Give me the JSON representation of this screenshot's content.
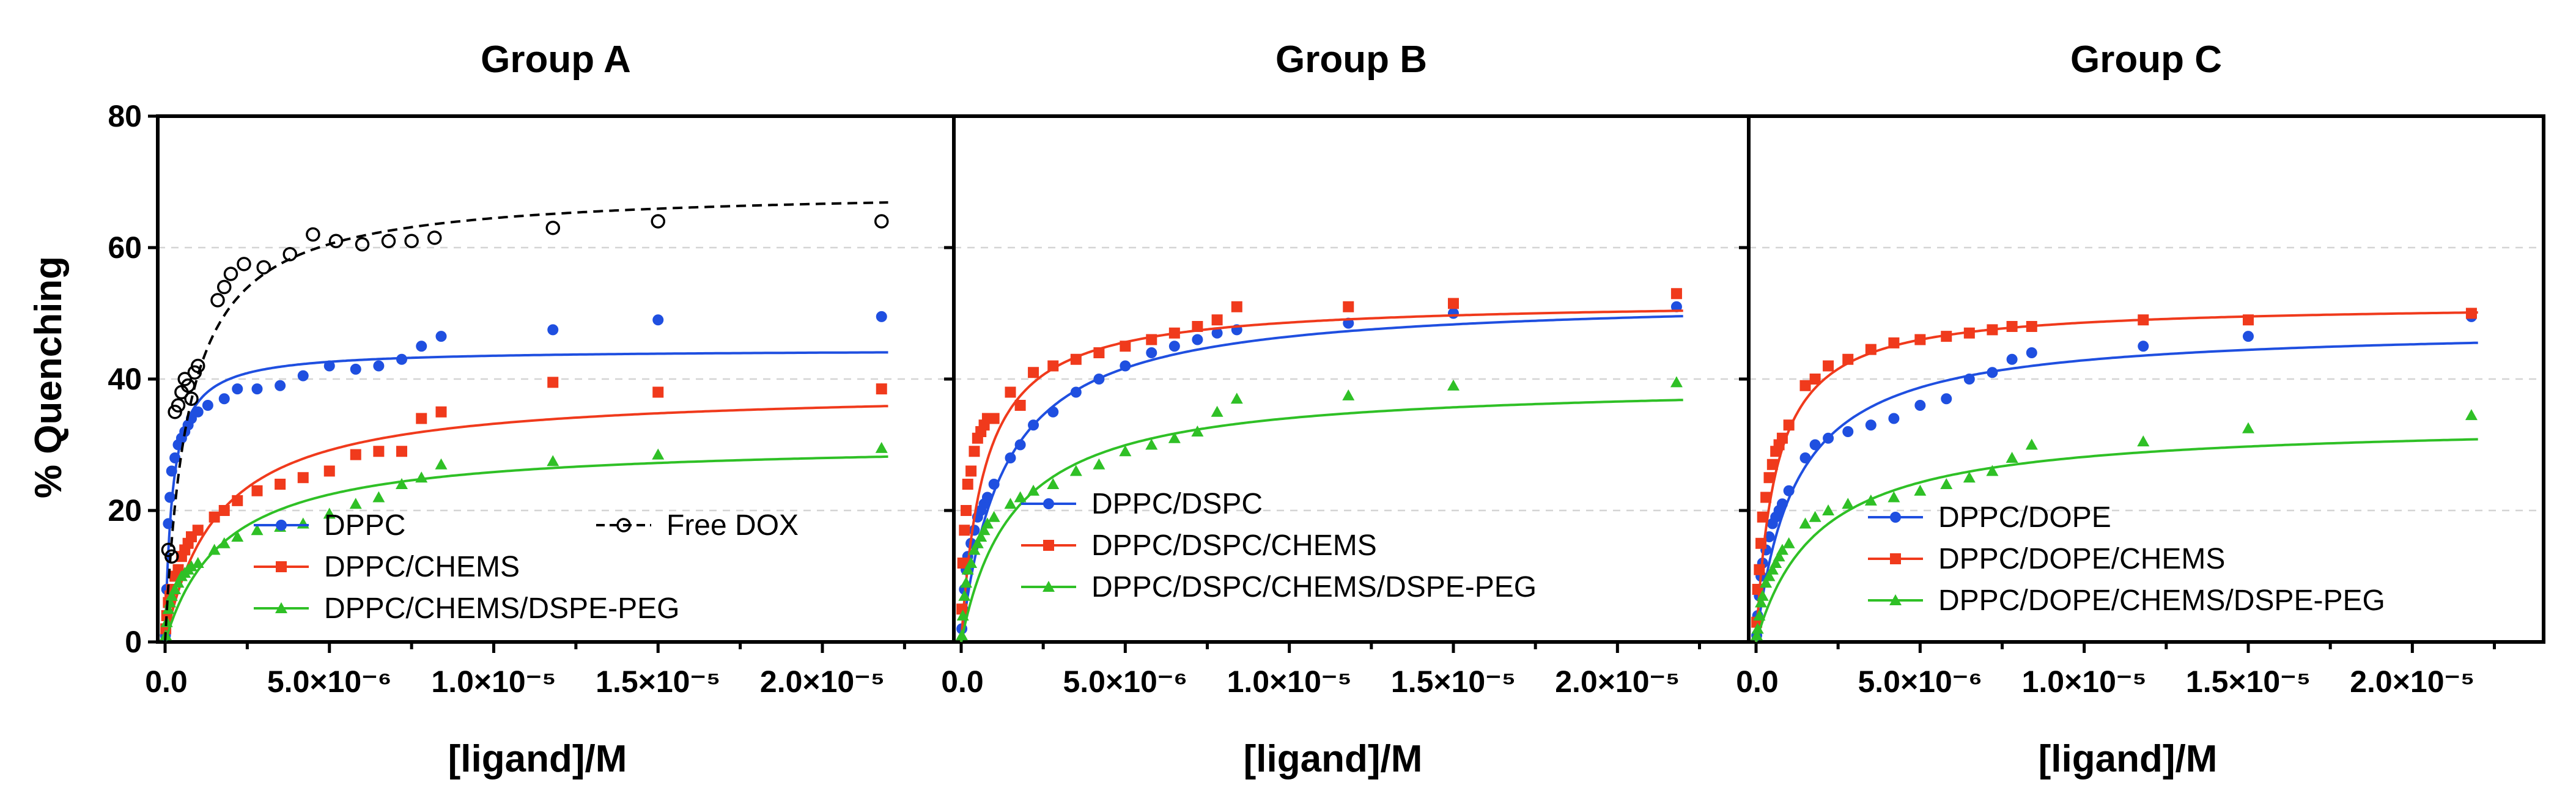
{
  "y_axis_title": "% Quenching",
  "chart_data": [
    {
      "type": "scatter",
      "title": "Group A",
      "xlabel": "[ligand]/M",
      "ylabel": "% Quenching",
      "xlim": [
        0,
        2.4e-05
      ],
      "ylim": [
        0,
        80
      ],
      "yticks": [
        "0",
        "20",
        "40",
        "60",
        "80"
      ],
      "xticks": [
        "0.0",
        "5.0×10⁻⁶",
        "1.0×10⁻⁵",
        "1.5×10⁻⁵",
        "2.0×10⁻⁵"
      ],
      "legend": [
        "DPPC",
        "DPPC/CHEMS",
        "DPPC/CHEMS/DSPE-PEG",
        "Free DOX"
      ],
      "series": [
        {
          "name": "DPPC",
          "color": "#1f4fe0",
          "marker": "circle",
          "fit": {
            "bmax": 44.5,
            "kd": 2.2e-07
          },
          "x": [
            1e-08,
            5e-08,
            1e-07,
            1.5e-07,
            2e-07,
            3e-07,
            4e-07,
            5e-07,
            6e-07,
            7e-07,
            8e-07,
            1e-06,
            1.3e-06,
            1.8e-06,
            2.2e-06,
            2.8e-06,
            3.5e-06,
            4.2e-06,
            5e-06,
            5.8e-06,
            6.5e-06,
            7.2e-06,
            7.8e-06,
            8.4e-06,
            1.18e-05,
            1.5e-05,
            2.18e-05
          ],
          "y": [
            1,
            8,
            18,
            22,
            26,
            28,
            30,
            31,
            32,
            33,
            34,
            35,
            36,
            37,
            38.5,
            38.5,
            39,
            40.5,
            42,
            41.5,
            42,
            43,
            45,
            46.5,
            47.5,
            49,
            49.5
          ]
        },
        {
          "name": "DPPC/CHEMS",
          "color": "#f03a1c",
          "marker": "square",
          "fit": {
            "bmax": 38.5,
            "kd": 1.6e-06
          },
          "x": [
            2e-08,
            5e-08,
            1e-07,
            1.5e-07,
            2e-07,
            3e-07,
            4e-07,
            5e-07,
            6e-07,
            7e-07,
            8e-07,
            1e-06,
            1.5e-06,
            1.8e-06,
            2.2e-06,
            2.8e-06,
            3.5e-06,
            4.2e-06,
            5e-06,
            5.8e-06,
            6.5e-06,
            7.2e-06,
            7.8e-06,
            8.4e-06,
            1.18e-05,
            1.5e-05,
            2.18e-05
          ],
          "y": [
            2,
            4,
            6,
            7,
            8,
            10,
            11,
            13,
            14,
            15,
            16,
            17,
            19,
            20,
            21.5,
            23,
            24,
            25,
            26,
            28.5,
            29,
            29,
            34,
            35,
            39.5,
            38,
            38.5
          ]
        },
        {
          "name": "DPPC/CHEMS/DSPE-PEG",
          "color": "#2fc026",
          "marker": "triangle",
          "fit": {
            "bmax": 30.5,
            "kd": 1.8e-06
          },
          "x": [
            2e-08,
            5e-08,
            1e-07,
            1.5e-07,
            2e-07,
            3e-07,
            4e-07,
            5e-07,
            6e-07,
            7e-07,
            8e-07,
            1e-06,
            1.5e-06,
            1.8e-06,
            2.2e-06,
            2.8e-06,
            3.5e-06,
            4.2e-06,
            5e-06,
            5.8e-06,
            6.5e-06,
            7.2e-06,
            7.8e-06,
            8.4e-06,
            1.18e-05,
            1.5e-05,
            2.18e-05
          ],
          "y": [
            1,
            3,
            5,
            6,
            7,
            8,
            9,
            10,
            10.5,
            11,
            11.5,
            12,
            14,
            15,
            16,
            17,
            17.5,
            18,
            19.5,
            21,
            22,
            24,
            25,
            27,
            27.5,
            28.5,
            29.5
          ]
        },
        {
          "name": "Free DOX",
          "color": "#000000",
          "marker": "open-circle",
          "fit": {
            "bmax": 69,
            "kd": 7e-07
          },
          "x": [
            1e-07,
            2e-07,
            3e-07,
            4e-07,
            5e-07,
            6e-07,
            7e-07,
            8e-07,
            9e-07,
            1e-06,
            1.6e-06,
            1.8e-06,
            2e-06,
            2.4e-06,
            3e-06,
            3.8e-06,
            4.5e-06,
            5.2e-06,
            6e-06,
            6.8e-06,
            7.5e-06,
            8.2e-06,
            1.18e-05,
            1.5e-05,
            2.18e-05
          ],
          "y": [
            14,
            13,
            35,
            36,
            38,
            40,
            39,
            37,
            41,
            42,
            52,
            54,
            56,
            57.5,
            57,
            59,
            62,
            61,
            60.5,
            61,
            61,
            61.5,
            63,
            64,
            64
          ]
        }
      ]
    },
    {
      "type": "scatter",
      "title": "Group B",
      "xlabel": "[ligand]/M",
      "ylabel": "% Quenching",
      "xlim": [
        0,
        2.4e-05
      ],
      "ylim": [
        0,
        80
      ],
      "xticks": [
        "0.0",
        "5.0×10⁻⁶",
        "1.0×10⁻⁵",
        "1.5×10⁻⁵",
        "2.0×10⁻⁵"
      ],
      "legend": [
        "DPPC/DSPC",
        "DPPC/DSPC/CHEMS",
        "DPPC/DSPC/CHEMS/DSPE-PEG"
      ],
      "series": [
        {
          "name": "DPPC/DSPC",
          "color": "#1f4fe0",
          "marker": "circle",
          "fit": {
            "bmax": 52.5,
            "kd": 1.3e-06
          },
          "x": [
            2e-08,
            5e-08,
            1e-07,
            1.5e-07,
            2e-07,
            3e-07,
            4e-07,
            5e-07,
            6e-07,
            7e-07,
            8e-07,
            1e-06,
            1.5e-06,
            1.8e-06,
            2.2e-06,
            2.8e-06,
            3.5e-06,
            4.2e-06,
            5e-06,
            5.8e-06,
            6.5e-06,
            7.2e-06,
            7.8e-06,
            8.4e-06,
            1.18e-05,
            1.5e-05,
            2.18e-05
          ],
          "y": [
            2,
            5,
            8,
            11,
            13,
            15,
            17,
            19,
            20,
            21,
            22,
            24,
            28,
            30,
            33,
            35,
            38,
            40,
            42,
            44,
            45,
            46,
            47,
            47.5,
            48.5,
            50,
            51
          ]
        },
        {
          "name": "DPPC/DSPC/CHEMS",
          "color": "#f03a1c",
          "marker": "square",
          "fit": {
            "bmax": 52,
            "kd": 7e-07
          },
          "x": [
            2e-08,
            5e-08,
            1e-07,
            1.5e-07,
            2e-07,
            3e-07,
            4e-07,
            5e-07,
            6e-07,
            7e-07,
            8e-07,
            1e-06,
            1.5e-06,
            1.8e-06,
            2.2e-06,
            2.8e-06,
            3.5e-06,
            4.2e-06,
            5e-06,
            5.8e-06,
            6.5e-06,
            7.2e-06,
            7.8e-06,
            8.4e-06,
            1.18e-05,
            1.5e-05,
            2.18e-05
          ],
          "y": [
            5,
            12,
            17,
            20,
            24,
            26,
            29,
            31,
            32,
            33,
            34,
            34,
            38,
            36,
            41,
            42,
            43,
            44,
            45,
            46,
            47,
            48,
            49,
            51,
            51,
            51.5,
            53
          ]
        },
        {
          "name": "DPPC/DSPC/CHEMS/DSPE-PEG",
          "color": "#2fc026",
          "marker": "triangle",
          "fit": {
            "bmax": 39.5,
            "kd": 1.6e-06
          },
          "x": [
            2e-08,
            5e-08,
            1e-07,
            1.5e-07,
            2e-07,
            3e-07,
            4e-07,
            5e-07,
            6e-07,
            7e-07,
            8e-07,
            1e-06,
            1.5e-06,
            1.8e-06,
            2.2e-06,
            2.8e-06,
            3.5e-06,
            4.2e-06,
            5e-06,
            5.8e-06,
            6.5e-06,
            7.2e-06,
            7.8e-06,
            8.4e-06,
            1.18e-05,
            1.5e-05,
            2.18e-05
          ],
          "y": [
            1,
            4,
            7,
            9,
            11,
            12,
            14,
            15,
            16,
            17,
            18,
            19,
            21,
            22,
            23,
            24,
            26,
            27,
            29,
            30,
            31,
            32,
            35,
            37,
            37.5,
            39,
            39.5
          ]
        }
      ]
    },
    {
      "type": "scatter",
      "title": "Group C",
      "xlabel": "[ligand]/M",
      "ylabel": "% Quenching",
      "xlim": [
        0,
        2.4e-05
      ],
      "ylim": [
        0,
        80
      ],
      "xticks": [
        "0.0",
        "5.0×10⁻⁶",
        "1.0×10⁻⁵",
        "1.5×10⁻⁵",
        "2.0×10⁻⁵"
      ],
      "legend": [
        "DPPC/DOPE",
        "DPPC/DOPE/CHEMS",
        "DPPC/DOPE/CHEMS/DSPE-PEG"
      ],
      "series": [
        {
          "name": "DPPC/DOPE",
          "color": "#1f4fe0",
          "marker": "circle",
          "fit": {
            "bmax": 48,
            "kd": 1.2e-06
          },
          "x": [
            2e-08,
            5e-08,
            1e-07,
            1.5e-07,
            2e-07,
            3e-07,
            4e-07,
            5e-07,
            6e-07,
            7e-07,
            8e-07,
            1e-06,
            1.5e-06,
            1.8e-06,
            2.2e-06,
            2.8e-06,
            3.5e-06,
            4.2e-06,
            5e-06,
            5.8e-06,
            6.5e-06,
            7.2e-06,
            7.8e-06,
            8.4e-06,
            1.18e-05,
            1.5e-05,
            2.18e-05
          ],
          "y": [
            1,
            4,
            7,
            10,
            12,
            14,
            16,
            18,
            19,
            20,
            21,
            23,
            28,
            30,
            31,
            32,
            33,
            34,
            36,
            37,
            40,
            41,
            43,
            44,
            45,
            46.5,
            49.5
          ]
        },
        {
          "name": "DPPC/DOPE/CHEMS",
          "color": "#f03a1c",
          "marker": "square",
          "fit": {
            "bmax": 51.5,
            "kd": 6e-07
          },
          "x": [
            2e-08,
            5e-08,
            1e-07,
            1.5e-07,
            2e-07,
            3e-07,
            4e-07,
            5e-07,
            6e-07,
            7e-07,
            8e-07,
            1e-06,
            1.5e-06,
            1.8e-06,
            2.2e-06,
            2.8e-06,
            3.5e-06,
            4.2e-06,
            5e-06,
            5.8e-06,
            6.5e-06,
            7.2e-06,
            7.8e-06,
            8.4e-06,
            1.18e-05,
            1.5e-05,
            2.18e-05
          ],
          "y": [
            3,
            8,
            11,
            15,
            19,
            22,
            25,
            27,
            29,
            30,
            31,
            33,
            39,
            40,
            42,
            43,
            44.5,
            45.5,
            46,
            46.5,
            47,
            47.5,
            48,
            48,
            49,
            49,
            50
          ]
        },
        {
          "name": "DPPC/DOPE/CHEMS/DSPE-PEG",
          "color": "#2fc026",
          "marker": "triangle",
          "fit": {
            "bmax": 33.5,
            "kd": 1.9e-06
          },
          "x": [
            2e-08,
            5e-08,
            1e-07,
            1.5e-07,
            2e-07,
            3e-07,
            4e-07,
            5e-07,
            6e-07,
            7e-07,
            8e-07,
            1e-06,
            1.5e-06,
            1.8e-06,
            2.2e-06,
            2.8e-06,
            3.5e-06,
            4.2e-06,
            5e-06,
            5.8e-06,
            6.5e-06,
            7.2e-06,
            7.8e-06,
            8.4e-06,
            1.18e-05,
            1.5e-05,
            2.18e-05
          ],
          "y": [
            1,
            2,
            4,
            6,
            7,
            9,
            10,
            11,
            12,
            13,
            14,
            15,
            18,
            19,
            20,
            21,
            21.5,
            22,
            23,
            24,
            25,
            26,
            28,
            30,
            30.5,
            32.5,
            34.5
          ]
        }
      ]
    }
  ]
}
